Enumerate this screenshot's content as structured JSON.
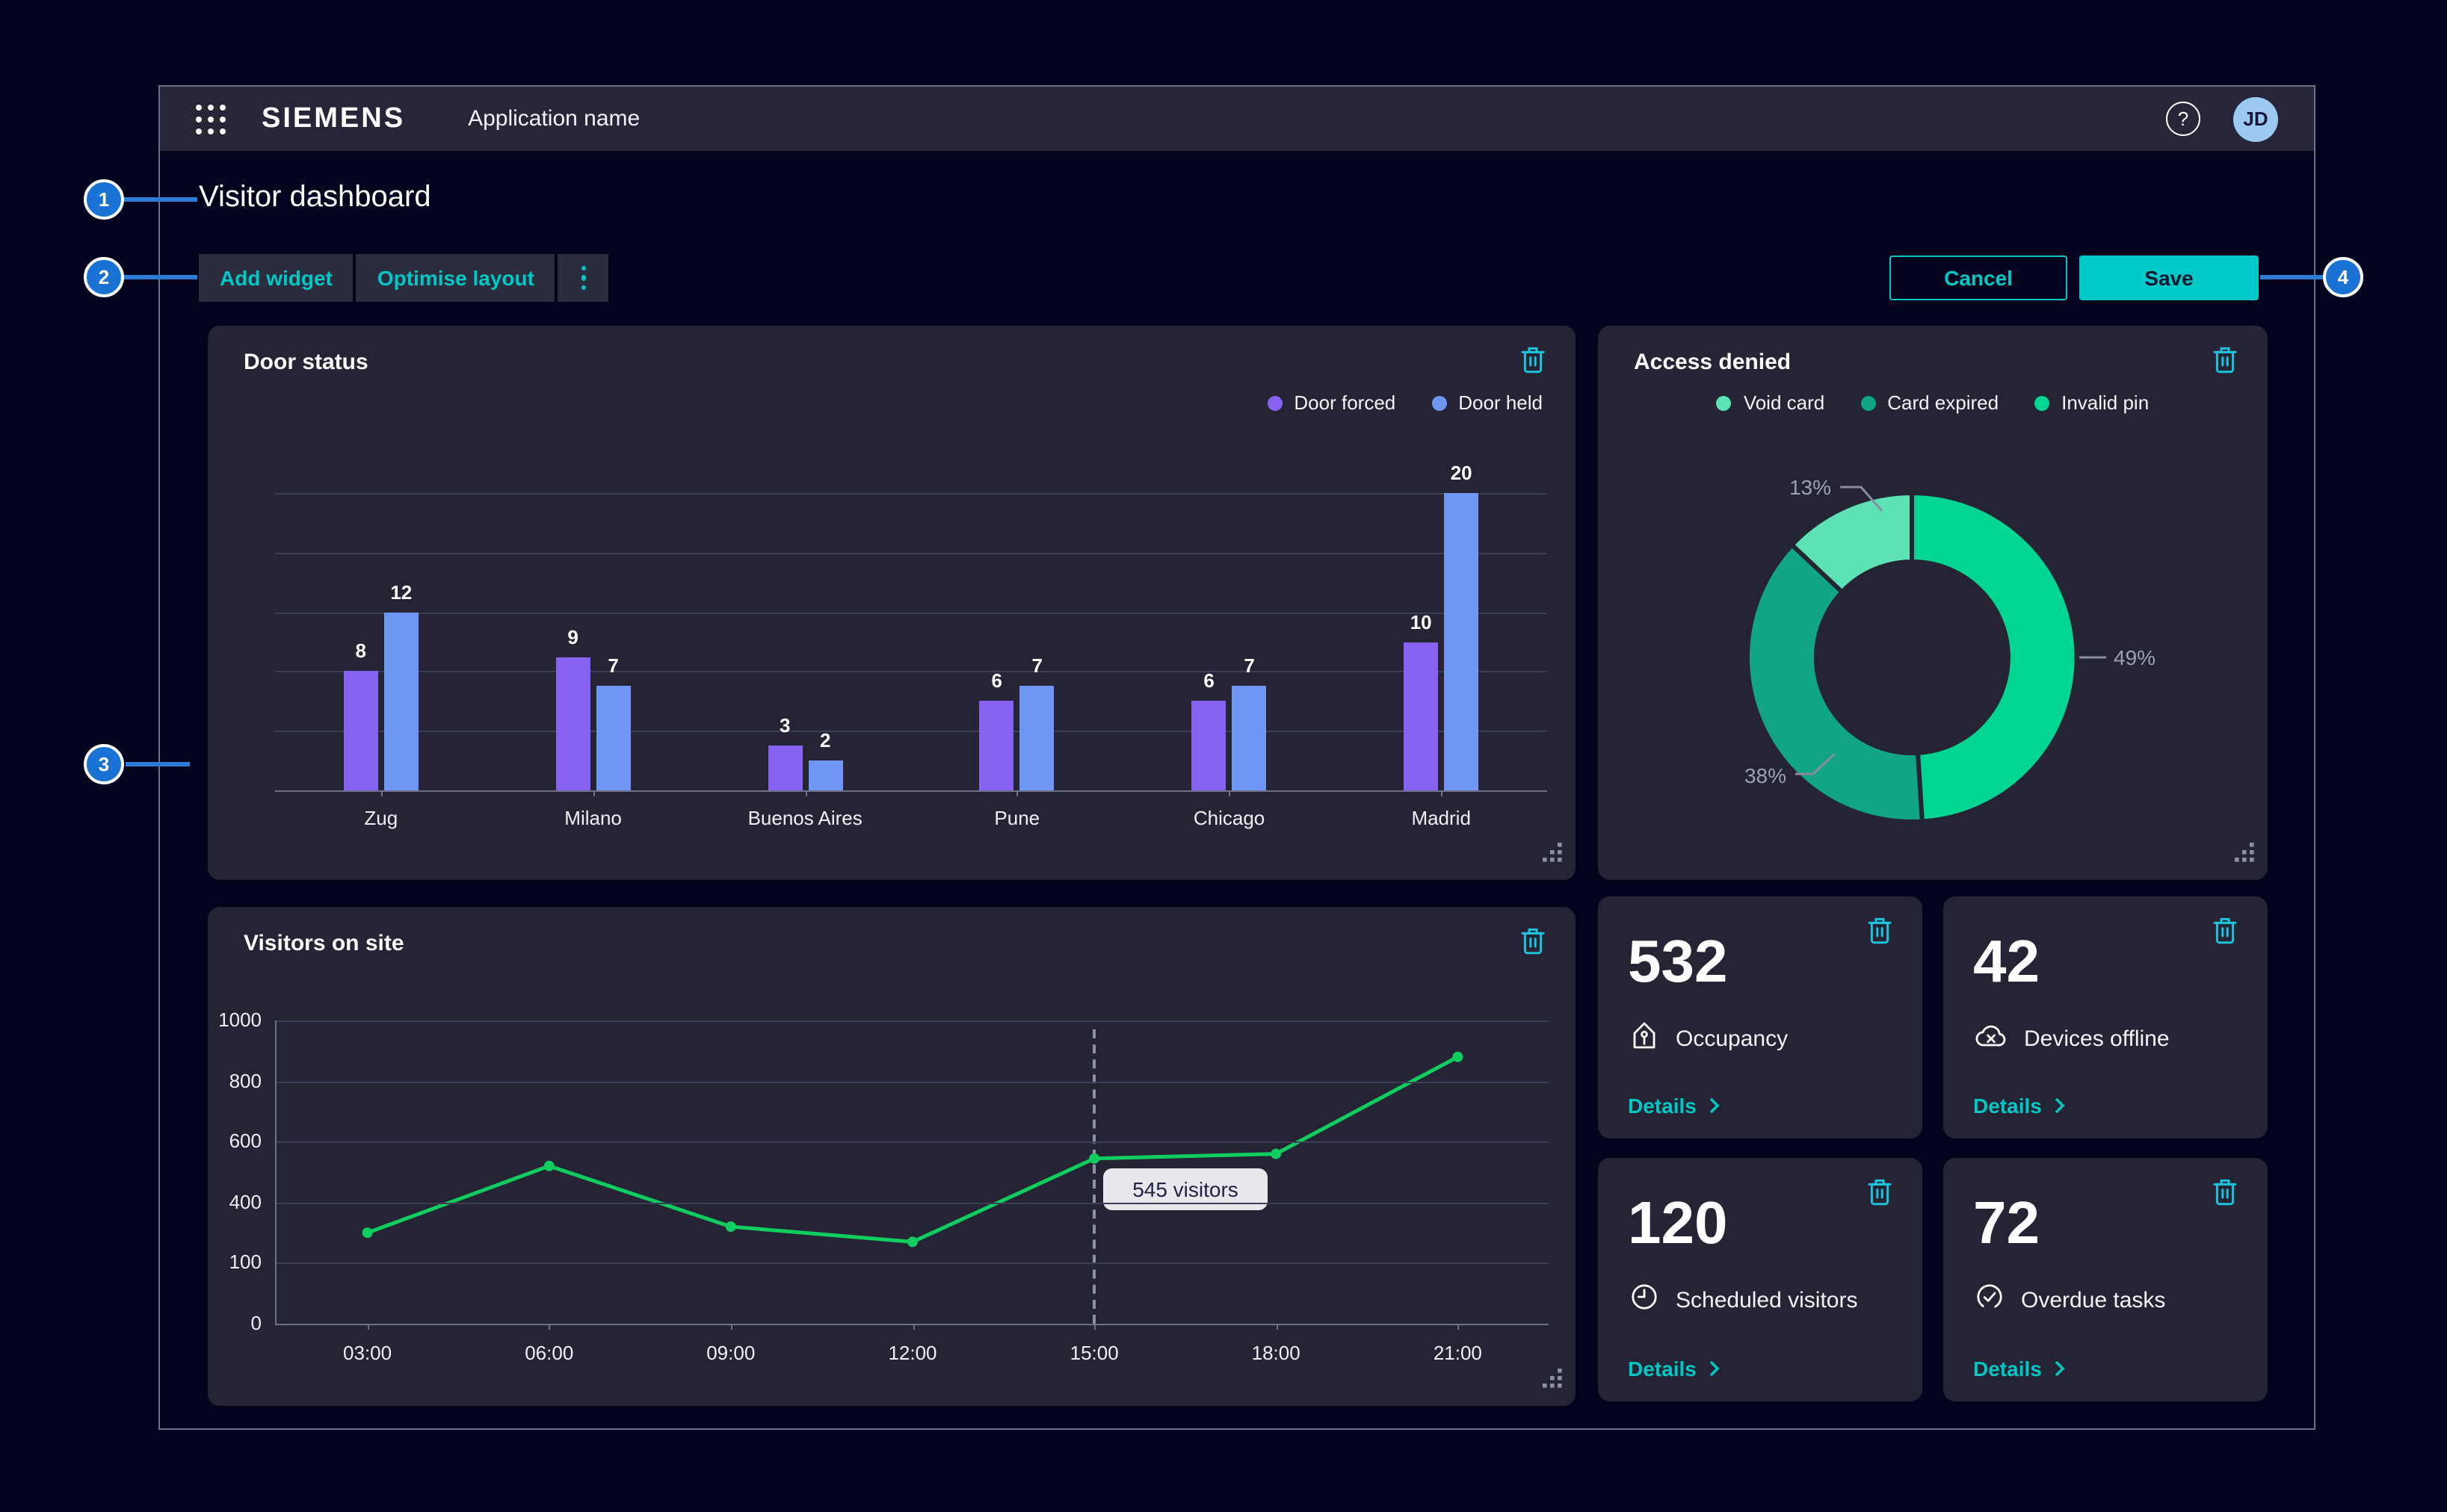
{
  "annotations": {
    "badges": [
      {
        "number": "1"
      },
      {
        "number": "2"
      },
      {
        "number": "3"
      },
      {
        "number": "4"
      }
    ]
  },
  "header": {
    "logo": "SIEMENS",
    "app_name": "Application name",
    "help": "?",
    "avatar_initials": "JD"
  },
  "page": {
    "title": "Visitor dashboard"
  },
  "toolbar": {
    "add_widget": "Add widget",
    "optimise_layout": "Optimise layout",
    "cancel": "Cancel",
    "save": "Save"
  },
  "colors": {
    "accent_cyan": "#00C9C5",
    "trash_cyan": "#1CC3DD",
    "save_fill": "#00C9C9",
    "annotation_blue": "#1A72D4",
    "avatar_blue": "#9CC8F2",
    "bar_purple": "#8761F2",
    "bar_blue": "#6E96F2",
    "line_green": "#0FCE5F",
    "donut_mint": "#5CE2B4",
    "donut_dark_green": "#12A585",
    "donut_emerald": "#00D691"
  },
  "chart_data": [
    {
      "type": "bar",
      "title": "Door status",
      "categories": [
        "Zug",
        "Milano",
        "Buenos Aires",
        "Pune",
        "Chicago",
        "Madrid"
      ],
      "series": [
        {
          "name": "Door forced",
          "color": "#8761F2",
          "values": [
            8,
            9,
            3,
            6,
            6,
            10
          ]
        },
        {
          "name": "Door held",
          "color": "#6E96F2",
          "values": [
            12,
            7,
            2,
            7,
            7,
            20
          ]
        }
      ],
      "ylim": [
        0,
        20
      ],
      "gridline_values": [
        4,
        8,
        12,
        16,
        20
      ],
      "grid": true,
      "value_labels": true,
      "legend_position": "top-right"
    },
    {
      "type": "donut",
      "title": "Access denied",
      "slices": [
        {
          "label": "Void card",
          "value": 13,
          "pct_label": "13%",
          "color": "#5CE2B4"
        },
        {
          "label": "Card expired",
          "value": 38,
          "pct_label": "38%",
          "color": "#12A585"
        },
        {
          "label": "Invalid pin",
          "value": 49,
          "pct_label": "49%",
          "color": "#00D691"
        }
      ],
      "draw_order_clockwise_from_top": [
        "Invalid pin",
        "Card expired",
        "Void card"
      ],
      "legend_position": "top-center"
    },
    {
      "type": "line",
      "title": "Visitors on site",
      "x": [
        "03:00",
        "06:00",
        "09:00",
        "12:00",
        "15:00",
        "18:00",
        "21:00"
      ],
      "values": [
        300,
        520,
        320,
        270,
        545,
        560,
        880
      ],
      "color": "#0FCE5F",
      "ylim": [
        0,
        1000
      ],
      "ytick_labels": [
        "1000",
        "800",
        "600",
        "400",
        "100",
        "0"
      ],
      "grid": true,
      "tooltip": {
        "x": "15:00",
        "text": "545 visitors"
      }
    }
  ],
  "kpis": [
    {
      "value": "532",
      "label": "Occupancy",
      "icon": "occupancy-icon",
      "details": "Details"
    },
    {
      "value": "42",
      "label": "Devices offline",
      "icon": "devices-offline-icon",
      "details": "Details"
    },
    {
      "value": "120",
      "label": "Scheduled visitors",
      "icon": "scheduled-visitors-icon",
      "details": "Details"
    },
    {
      "value": "72",
      "label": "Overdue tasks",
      "icon": "overdue-tasks-icon",
      "details": "Details"
    }
  ]
}
